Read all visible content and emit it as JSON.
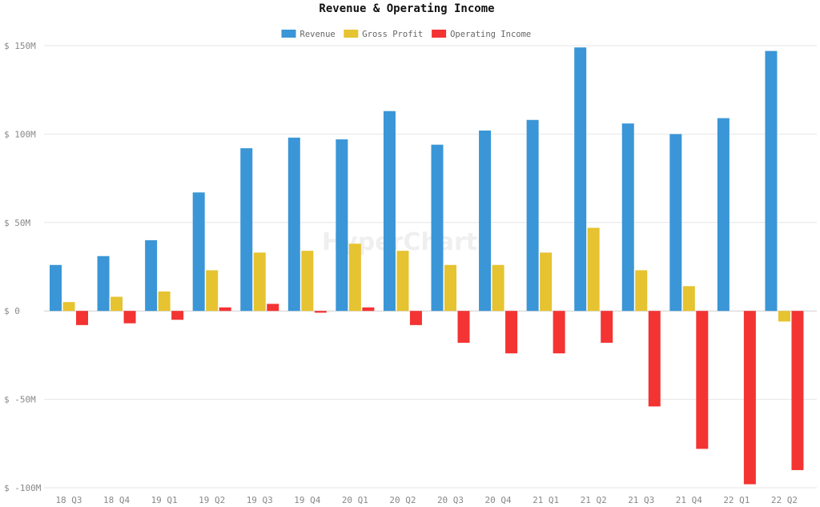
{
  "chart_data": {
    "type": "bar",
    "title": "Revenue & Operating Income",
    "watermark": "HyperCharts",
    "categories": [
      "18 Q3",
      "18 Q4",
      "19 Q1",
      "19 Q2",
      "19 Q3",
      "19 Q4",
      "20 Q1",
      "20 Q2",
      "20 Q3",
      "20 Q4",
      "21 Q1",
      "21 Q2",
      "21 Q3",
      "21 Q4",
      "22 Q1",
      "22 Q2"
    ],
    "series": [
      {
        "name": "Revenue",
        "color": "#3a96d6",
        "values": [
          26,
          31,
          40,
          67,
          92,
          98,
          97,
          113,
          94,
          102,
          108,
          149,
          106,
          100,
          109,
          147
        ]
      },
      {
        "name": "Gross Profit",
        "color": "#e6c330",
        "values": [
          5,
          8,
          11,
          23,
          33,
          34,
          38,
          34,
          26,
          26,
          33,
          47,
          23,
          14,
          0,
          -6
        ]
      },
      {
        "name": "Operating Income",
        "color": "#f43333",
        "values": [
          -8,
          -7,
          -5,
          2,
          4,
          -1,
          2,
          -8,
          -18,
          -24,
          -24,
          -18,
          -54,
          -78,
          -98,
          -90
        ]
      }
    ],
    "ylim": [
      -100,
      150
    ],
    "yticks": [
      -100,
      -50,
      0,
      50,
      100,
      150
    ],
    "ytick_labels": [
      "$ -100M",
      "$ -50M",
      "$ 0",
      "$ 50M",
      "$ 100M",
      "$ 150M"
    ],
    "xlabel": "",
    "ylabel": "",
    "grid": true,
    "legend_position": "top-center"
  }
}
